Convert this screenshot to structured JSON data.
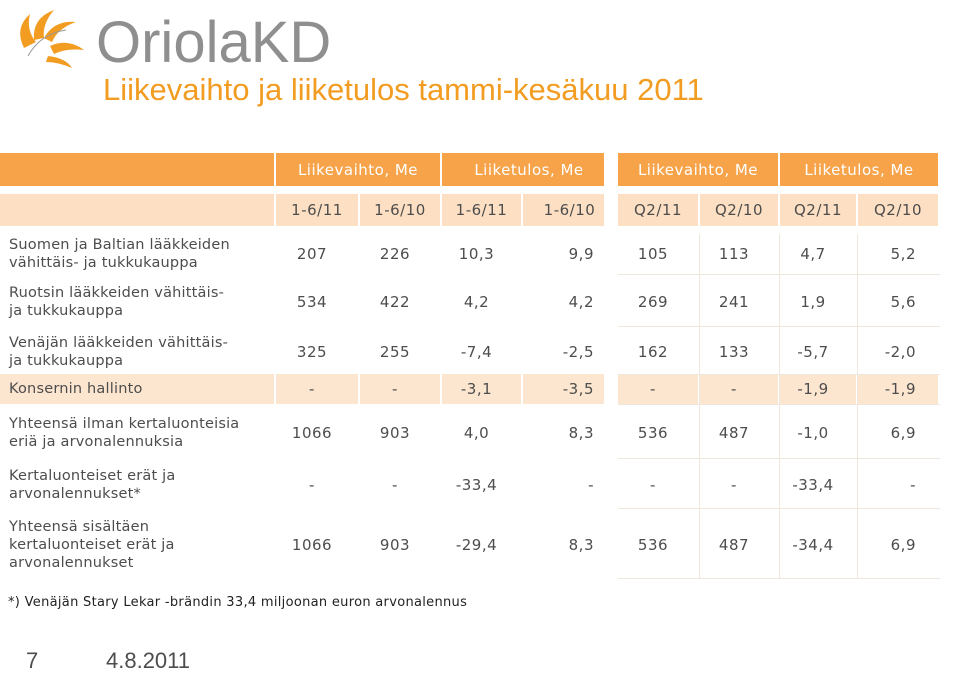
{
  "logo": {
    "text": "OriolaKD"
  },
  "title": "Liikevaihto ja liiketulos tammi-kesäkuu 2011",
  "table": {
    "group_headers": [
      "Liikevaihto, Me",
      "Liiketulos, Me",
      "Liikevaihto, Me",
      "Liiketulos, Me"
    ],
    "period_headers": [
      "1-6/11",
      "1-6/10",
      "1-6/11",
      "1-6/10",
      "Q2/11",
      "Q2/10",
      "Q2/11",
      "Q2/10"
    ],
    "rows": [
      {
        "label": "Suomen ja Baltian lääkkeiden\nvähittäis- ja tukkukauppa",
        "values": [
          "207",
          "226",
          "10,3",
          "9,9",
          "105",
          "113",
          "4,7",
          "5,2"
        ]
      },
      {
        "label": "Ruotsin lääkkeiden vähittäis-\nja tukkukauppa",
        "values": [
          "534",
          "422",
          "4,2",
          "4,2",
          "269",
          "241",
          "1,9",
          "5,6"
        ]
      },
      {
        "label": "Venäjän lääkkeiden vähittäis-\nja tukkukauppa",
        "values": [
          "325",
          "255",
          "-7,4",
          "-2,5",
          "162",
          "133",
          "-5,7",
          "-2,0"
        ]
      },
      {
        "label": "Konsernin hallinto",
        "values": [
          "-",
          "-",
          "-3,1",
          "-3,5",
          "-",
          "-",
          "-1,9",
          "-1,9"
        ]
      },
      {
        "label": "Yhteensä ilman kertaluonteisia\neriä ja arvonalennuksia",
        "values": [
          "1066",
          "903",
          "4,0",
          "8,3",
          "536",
          "487",
          "-1,0",
          "6,9"
        ]
      },
      {
        "label": "Kertaluonteiset erät ja\narvonalennukset*",
        "values": [
          "-",
          "-",
          "-33,4",
          "-",
          "-",
          "-",
          "-33,4",
          "-"
        ]
      },
      {
        "label": "Yhteensä sisältäen\nkertaluonteiset erät ja\narvonalennukset",
        "values": [
          "1066",
          "903",
          "-29,4",
          "8,3",
          "536",
          "487",
          "-34,4",
          "6,9"
        ]
      }
    ]
  },
  "footnote": "*) Venäjän Stary Lekar -brändin 33,4 miljoonan euron arvonalennus",
  "page_number": "7",
  "date": "4.8.2011",
  "colors": {
    "accent": "#f29c22",
    "header": "#f6a34a",
    "band": "#fde6d0",
    "text": "#4d4d4d"
  }
}
